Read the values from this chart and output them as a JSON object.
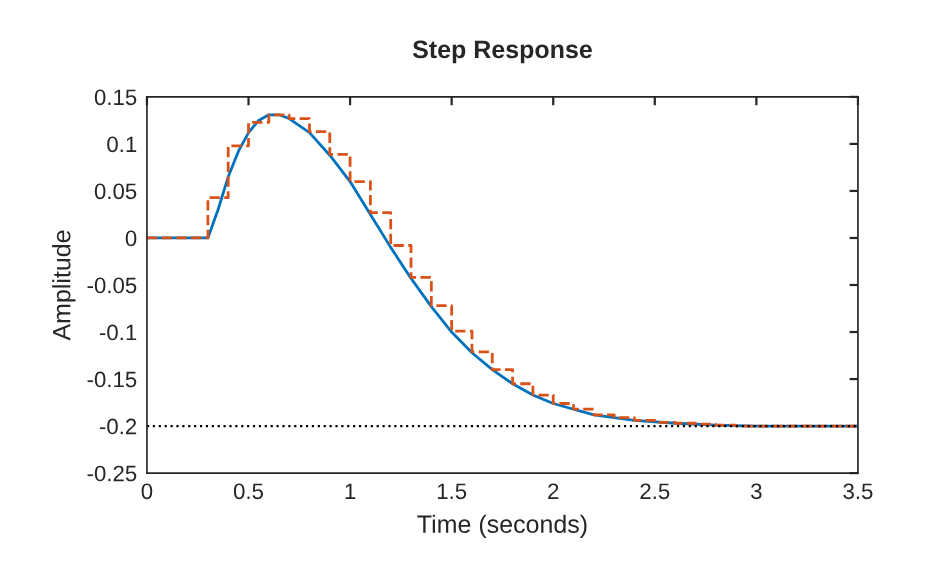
{
  "chart_data": {
    "type": "line",
    "title": "Step Response",
    "xlabel": "Time (seconds)",
    "ylabel": "Amplitude",
    "series": [
      {
        "color": "#0072bd",
        "line_style": "solid",
        "x": [
          0,
          0.3,
          0.35,
          0.4,
          0.45,
          0.5,
          0.55,
          0.6,
          0.65,
          0.7,
          0.8,
          0.9,
          1.0,
          1.1,
          1.2,
          1.3,
          1.4,
          1.5,
          1.6,
          1.7,
          1.8,
          1.9,
          2.0,
          2.2,
          2.4,
          2.6,
          2.8,
          3.0,
          3.5
        ],
        "values": [
          0,
          0,
          0.03,
          0.065,
          0.092,
          0.112,
          0.125,
          0.131,
          0.131,
          0.127,
          0.112,
          0.088,
          0.06,
          0.025,
          -0.01,
          -0.043,
          -0.073,
          -0.1,
          -0.122,
          -0.14,
          -0.155,
          -0.167,
          -0.176,
          -0.188,
          -0.194,
          -0.197,
          -0.199,
          -0.2,
          -0.2
        ]
      },
      {
        "type": "step",
        "color": "#d95319",
        "line_style": "dashed",
        "x": [
          0,
          0.1,
          0.2,
          0.3,
          0.4,
          0.5,
          0.6,
          0.7,
          0.8,
          0.9,
          1.0,
          1.1,
          1.2,
          1.3,
          1.4,
          1.5,
          1.6,
          1.7,
          1.8,
          1.9,
          2.0,
          2.1,
          2.2,
          2.3,
          2.4,
          2.5,
          2.6,
          2.7,
          2.8,
          2.9,
          3.0,
          3.1,
          3.2,
          3.3,
          3.4,
          3.5
        ],
        "values": [
          0,
          0,
          0,
          0.043,
          0.098,
          0.123,
          0.131,
          0.127,
          0.113,
          0.089,
          0.06,
          0.027,
          -0.008,
          -0.042,
          -0.072,
          -0.099,
          -0.121,
          -0.14,
          -0.155,
          -0.167,
          -0.176,
          -0.182,
          -0.188,
          -0.191,
          -0.194,
          -0.196,
          -0.197,
          -0.198,
          -0.199,
          -0.2,
          -0.2,
          -0.2,
          -0.2,
          -0.2,
          -0.2,
          -0.2
        ]
      }
    ],
    "ref_lines": [
      {
        "axis": "y",
        "value": -0.2,
        "color": "#000000",
        "line_style": "dotted"
      }
    ],
    "xlim": [
      0,
      3.5
    ],
    "xticks": [
      0,
      0.5,
      1,
      1.5,
      2,
      2.5,
      3,
      3.5
    ],
    "ylim": [
      -0.25,
      0.15
    ],
    "yticks": [
      -0.25,
      -0.2,
      -0.15,
      -0.1,
      -0.05,
      0,
      0.05,
      0.1,
      0.15
    ],
    "grid": false,
    "legend": false
  }
}
